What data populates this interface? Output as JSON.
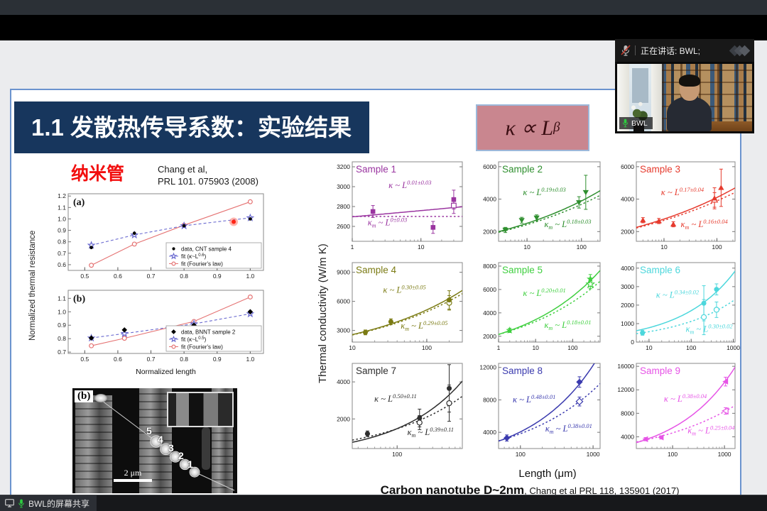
{
  "app": {
    "speaking_label": "正在讲话: BWL;",
    "participant_name": "BWL",
    "screen_share_label": "BWL的屏幕共享"
  },
  "slide": {
    "title": "1.1 发散热传导系数：实验结果",
    "formula": {
      "base": "κ ∝ L",
      "sup": "β"
    },
    "nanotube_label": "纳米管",
    "reference_line1": "Chang et al,",
    "reference_line2": "PRL 101. 075903 (2008)",
    "resistance_axis_label": "Normalized thermal resistance",
    "normalized_length_label": "Normalized length",
    "conductivity_axis_label": "Thermal conductivity (W/m K)",
    "length_axis_label": "Length (μm)",
    "caption_bold": "Carbon nanotube D~2nm",
    "caption_rest": ", Chang et al PRL 118, 135901 (2017)",
    "sem": {
      "panel_label": "(b)",
      "bead_numbers": [
        "5",
        "4",
        "3",
        "2",
        "1"
      ],
      "scale_bar": "2 μm"
    }
  },
  "chart_data": [
    {
      "id": "panel_a",
      "type": "line",
      "panel_label": "(a)",
      "xlim": [
        0.45,
        1.04
      ],
      "ylim": [
        0.55,
        1.22
      ],
      "xticks": [
        "0.5",
        "0.6",
        "0.7",
        "0.8",
        "0.9",
        "1.0"
      ],
      "yticks": [
        "0.6",
        "0.7",
        "0.8",
        "0.9",
        "1.0",
        "1.1",
        "1.2"
      ],
      "series": [
        {
          "name_pre": "fit (Fourier's law)",
          "name_sup": "",
          "name_post": "",
          "marker": "circle",
          "color": "#e57373",
          "dash": "solid",
          "x": [
            0.52,
            0.65,
            0.8,
            1.0
          ],
          "y": [
            0.595,
            0.78,
            0.945,
            1.15
          ]
        },
        {
          "name_pre": "fit (κ~L",
          "name_sup": "0.6",
          "name_post": ")",
          "marker": "star",
          "color": "#6a6ad0",
          "dash": "dashed",
          "x": [
            0.52,
            0.65,
            0.8,
            1.0
          ],
          "y": [
            0.77,
            0.86,
            0.94,
            1.01
          ]
        },
        {
          "name_pre": "data, CNT sample 4",
          "name_sup": "",
          "name_post": "",
          "marker": "dot",
          "color": "#000000",
          "dash": "none",
          "x": [
            0.52,
            0.65,
            0.8,
            1.0
          ],
          "y": [
            0.75,
            0.875,
            0.94,
            1.0
          ]
        }
      ],
      "legend_order": [
        2,
        1,
        0
      ],
      "highlight": {
        "x": 0.95,
        "y": 0.975
      }
    },
    {
      "id": "panel_b",
      "type": "line",
      "panel_label": "(b)",
      "xlabel": "Normalized length",
      "xlim": [
        0.45,
        1.04
      ],
      "ylim": [
        0.69,
        1.16
      ],
      "xticks": [
        "0.5",
        "0.6",
        "0.7",
        "0.8",
        "0.9",
        "1.0"
      ],
      "yticks": [
        "0.7",
        "0.8",
        "0.9",
        "1.0",
        "1.1"
      ],
      "series": [
        {
          "name_pre": "fit (Fourier's law)",
          "name_sup": "",
          "name_post": "",
          "marker": "circle",
          "color": "#e57373",
          "dash": "solid",
          "x": [
            0.52,
            0.62,
            0.83,
            1.0
          ],
          "y": [
            0.747,
            0.803,
            0.928,
            1.11
          ]
        },
        {
          "name_pre": "fit (κ~L",
          "name_sup": "0.5",
          "name_post": ")",
          "marker": "star",
          "color": "#6a6ad0",
          "dash": "dashed",
          "x": [
            0.52,
            0.62,
            0.83,
            1.0
          ],
          "y": [
            0.805,
            0.838,
            0.91,
            0.985
          ]
        },
        {
          "name_pre": "data, BNNT sample 2",
          "name_sup": "",
          "name_post": "",
          "marker": "diamond",
          "color": "#000000",
          "dash": "none",
          "x": [
            0.52,
            0.62,
            0.83,
            1.0
          ],
          "y": [
            0.805,
            0.865,
            0.9,
            1.0
          ]
        }
      ],
      "legend_order": [
        2,
        1,
        0
      ]
    },
    {
      "id": "sample_1",
      "type": "scatter",
      "title": "Sample 1",
      "color": "#9a35a0",
      "marker": "square",
      "xlim": [
        1,
        40
      ],
      "xticks": [
        1,
        10
      ],
      "ylim": [
        2450,
        3250
      ],
      "yticks": [
        2600,
        2800,
        3000,
        3200
      ],
      "exp_solid": "0.01±0.03",
      "exp_dashed": "0±0.03",
      "fit_solid": {
        "x0": 2,
        "y0": 2715,
        "exp": 0.01
      },
      "fit_dashed": {
        "x0": 2,
        "y0": 2700,
        "exp": 0
      },
      "filled": [
        [
          2,
          2750,
          60
        ],
        [
          15,
          2590,
          60
        ],
        [
          30,
          2870,
          95
        ]
      ],
      "open": [
        [
          30,
          2810,
          80
        ]
      ],
      "kpos": [
        0.33,
        0.33
      ],
      "kmpos": [
        0.14,
        0.8
      ]
    },
    {
      "id": "sample_2",
      "type": "scatter",
      "title": "Sample 2",
      "color": "#2f8f2f",
      "marker": "tri-down",
      "xlim": [
        3,
        220
      ],
      "xticks": [
        10,
        100
      ],
      "ylim": [
        1400,
        6300
      ],
      "yticks": [
        2000,
        4000,
        6000
      ],
      "exp_solid": "0.19±0.03",
      "exp_dashed": "0.18±0.03",
      "fit_solid": {
        "x0": 4,
        "y0": 2110,
        "exp": 0.19
      },
      "fit_dashed": {
        "x0": 4,
        "y0": 2060,
        "exp": 0.18
      },
      "filled": [
        [
          4,
          2100,
          160
        ],
        [
          8,
          2700,
          180
        ],
        [
          15,
          2850,
          180
        ],
        [
          90,
          3800,
          350
        ],
        [
          120,
          4420,
          1050
        ]
      ],
      "open": [],
      "kpos": [
        0.24,
        0.42
      ],
      "kmpos": [
        0.45,
        0.82
      ]
    },
    {
      "id": "sample_3",
      "type": "scatter",
      "title": "Sample 3",
      "color": "#e63b2e",
      "marker": "tri-up",
      "xlim": [
        3,
        220
      ],
      "xticks": [
        10,
        100
      ],
      "ylim": [
        1400,
        6300
      ],
      "yticks": [
        2000,
        4000,
        6000
      ],
      "exp_solid": "0.17±0.04",
      "exp_dashed": "0.16±0.04",
      "fit_solid": {
        "x0": 3,
        "y0": 2260,
        "exp": 0.17
      },
      "fit_dashed": {
        "x0": 3,
        "y0": 2220,
        "exp": 0.16
      },
      "filled": [
        [
          4,
          2700,
          160
        ],
        [
          8,
          2650,
          160
        ],
        [
          15,
          2450,
          160
        ],
        [
          90,
          4050,
          650
        ],
        [
          120,
          4700,
          1150
        ]
      ],
      "open": [
        [
          90,
          3950,
          450
        ]
      ],
      "kpos": [
        0.25,
        0.42
      ],
      "kmpos": [
        0.45,
        0.82
      ]
    },
    {
      "id": "sample_4",
      "type": "scatter",
      "title": "Sample 4",
      "color": "#7b7b14",
      "marker": "circle",
      "xlim": [
        10,
        300
      ],
      "xticks": [
        10,
        100
      ],
      "ylim": [
        1800,
        10000
      ],
      "yticks": [
        3000,
        6000,
        9000
      ],
      "exp_solid": "0.30±0.05",
      "exp_dashed": "0.29±0.05",
      "fit_solid": {
        "x0": 15,
        "y0": 2900,
        "exp": 0.3
      },
      "fit_dashed": {
        "x0": 15,
        "y0": 2850,
        "exp": 0.29
      },
      "filled": [
        [
          15,
          2800,
          250
        ],
        [
          33,
          3900,
          300
        ],
        [
          200,
          6150,
          950
        ]
      ],
      "open": [
        [
          200,
          5850,
          750
        ]
      ],
      "kpos": [
        0.28,
        0.38
      ],
      "kmpos": [
        0.44,
        0.83
      ]
    },
    {
      "id": "sample_5",
      "type": "scatter",
      "title": "Sample 5",
      "color": "#3fcf3f",
      "marker": "star",
      "xlim": [
        1,
        550
      ],
      "xticks": [
        1,
        10,
        100
      ],
      "ylim": [
        1500,
        8300
      ],
      "yticks": [
        2000,
        4000,
        6000,
        8000
      ],
      "exp_solid": "0.20±0.01",
      "exp_dashed": "0.18±0.01",
      "fit_solid": {
        "x0": 2,
        "y0": 2480,
        "exp": 0.2
      },
      "fit_dashed": {
        "x0": 2,
        "y0": 2440,
        "exp": 0.18
      },
      "filled": [
        [
          2,
          2500,
          180
        ],
        [
          300,
          6900,
          380
        ]
      ],
      "open": [
        [
          300,
          6450,
          380
        ]
      ],
      "kpos": [
        0.24,
        0.42
      ],
      "kmpos": [
        0.45,
        0.82
      ]
    },
    {
      "id": "sample_6",
      "type": "scatter",
      "title": "Sample 6",
      "color": "#4cd7dc",
      "marker": "circle",
      "xlim": [
        5,
        1100
      ],
      "xticks": [
        10,
        100,
        1000
      ],
      "ylim": [
        0,
        4300
      ],
      "yticks": [
        0,
        1000,
        2000,
        3000,
        4000
      ],
      "exp_solid": "0.34±0.02",
      "exp_dashed": "0.30±0.02",
      "fit_solid": {
        "x0": 200,
        "y0": 2150,
        "exp": 0.34
      },
      "fit_dashed": {
        "x0": 200,
        "y0": 1380,
        "exp": 0.3
      },
      "filled": [
        [
          7,
          500,
          130
        ],
        [
          200,
          2100,
          950
        ],
        [
          400,
          2850,
          300
        ]
      ],
      "open": [
        [
          200,
          1350,
          950
        ],
        [
          400,
          1750,
          420
        ]
      ],
      "kpos": [
        0.2,
        0.44
      ],
      "kmpos": [
        0.5,
        0.87
      ]
    },
    {
      "id": "sample_7",
      "type": "scatter",
      "title": "Sample 7",
      "color": "#2e2e2e",
      "marker": "circle",
      "xlim": [
        25,
        750
      ],
      "xticks": [
        100
      ],
      "ylim": [
        400,
        5000
      ],
      "yticks": [
        2000,
        4000
      ],
      "exp_solid": "0.50±0.11",
      "exp_dashed": "0.39±0.11",
      "fit_solid": {
        "x0": 500,
        "y0": 3300,
        "exp": 0.5
      },
      "fit_dashed": {
        "x0": 500,
        "y0": 2750,
        "exp": 0.39
      },
      "filled": [
        [
          40,
          1200,
          150
        ],
        [
          200,
          2050,
          480
        ],
        [
          500,
          3650,
          1280
        ]
      ],
      "open": [
        [
          200,
          1800,
          380
        ],
        [
          500,
          2850,
          980
        ]
      ],
      "kpos": [
        0.2,
        0.45
      ],
      "kmpos": [
        0.5,
        0.84
      ]
    },
    {
      "id": "sample_8",
      "type": "scatter",
      "title": "Sample 8",
      "color": "#3a3aae",
      "marker": "diamond",
      "xlim": [
        50,
        1250
      ],
      "xticks": [
        100,
        1000
      ],
      "ylim": [
        2000,
        12500
      ],
      "yticks": [
        4000,
        8000,
        12000
      ],
      "exp_solid": "0.48±0.01",
      "exp_dashed": "0.38±0.01",
      "fit_solid": {
        "x0": 65,
        "y0": 3300,
        "exp": 0.48
      },
      "fit_dashed": {
        "x0": 650,
        "y0": 7800,
        "exp": 0.38
      },
      "filled": [
        [
          65,
          3300,
          380
        ],
        [
          650,
          10200,
          650
        ]
      ],
      "open": [
        [
          650,
          7800,
          550
        ]
      ],
      "kpos": [
        0.14,
        0.46
      ],
      "kmpos": [
        0.46,
        0.8
      ]
    },
    {
      "id": "sample_9",
      "type": "scatter",
      "title": "Sample 9",
      "color": "#e653e6",
      "marker": "tri-left",
      "xlim": [
        20,
        1600
      ],
      "xticks": [
        100,
        1000
      ],
      "ylim": [
        2000,
        16500
      ],
      "yticks": [
        4000,
        8000,
        12000,
        16000
      ],
      "exp_solid": "0.38±0.04",
      "exp_dashed": "0.25±0.04",
      "fit_solid": {
        "x0": 30,
        "y0": 3500,
        "exp": 0.38
      },
      "fit_dashed": {
        "x0": 1050,
        "y0": 8400,
        "exp": 0.25
      },
      "filled": [
        [
          30,
          3600,
          280
        ],
        [
          60,
          3900,
          280
        ],
        [
          1050,
          13400,
          750
        ]
      ],
      "open": [
        [
          1050,
          8400,
          550
        ]
      ],
      "kpos": [
        0.28,
        0.45
      ],
      "kmpos": [
        0.52,
        0.82
      ]
    }
  ]
}
